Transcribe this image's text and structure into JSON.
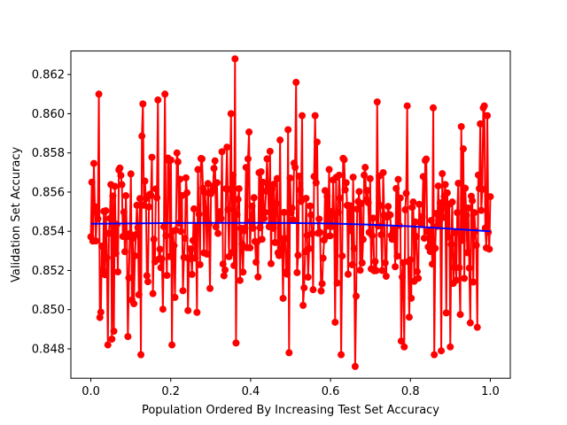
{
  "chart_data": {
    "type": "line",
    "title": "",
    "xlabel": "Population Ordered By Increasing Test Set Accuracy",
    "ylabel": "Validation Set Accuracy",
    "xlim": [
      -0.05,
      1.05
    ],
    "ylim": [
      0.8465,
      0.8632
    ],
    "grid": false,
    "legend": "none",
    "x_ticks": [
      0.0,
      0.2,
      0.4,
      0.6,
      0.8,
      1.0
    ],
    "x_tick_labels": [
      "0.0",
      "0.2",
      "0.4",
      "0.6",
      "0.8",
      "1.0"
    ],
    "y_ticks": [
      0.848,
      0.85,
      0.852,
      0.854,
      0.856,
      0.858,
      0.86,
      0.862
    ],
    "y_tick_labels": [
      "0.848",
      "0.850",
      "0.852",
      "0.854",
      "0.856",
      "0.858",
      "0.860",
      "0.862"
    ],
    "series": [
      {
        "role": "population",
        "color": "#ff0000",
        "marker": "circle",
        "x_range": [
          0.0,
          1.0
        ],
        "point_count": 400,
        "y_mean": 0.8544,
        "y_min": 0.8471,
        "y_max": 0.8628,
        "highlighted_points": [
          {
            "x": 0.36,
            "y": 0.8628
          },
          {
            "x": 0.513,
            "y": 0.8616
          },
          {
            "x": 0.021,
            "y": 0.861
          },
          {
            "x": 0.185,
            "y": 0.861
          },
          {
            "x": 0.168,
            "y": 0.8607
          },
          {
            "x": 0.716,
            "y": 0.8606
          },
          {
            "x": 0.13,
            "y": 0.8605
          },
          {
            "x": 0.985,
            "y": 0.8604
          },
          {
            "x": 0.793,
            "y": 0.8604
          },
          {
            "x": 0.858,
            "y": 0.8603
          },
          {
            "x": 0.35,
            "y": 0.86
          },
          {
            "x": 0.528,
            "y": 0.8599
          },
          {
            "x": 0.561,
            "y": 0.8599
          },
          {
            "x": 0.993,
            "y": 0.8599
          },
          {
            "x": 0.126,
            "y": 0.8477
          },
          {
            "x": 0.495,
            "y": 0.8478
          },
          {
            "x": 0.626,
            "y": 0.8477
          },
          {
            "x": 0.661,
            "y": 0.8471
          },
          {
            "x": 0.86,
            "y": 0.8477
          },
          {
            "x": 0.042,
            "y": 0.8482
          },
          {
            "x": 0.052,
            "y": 0.8485
          },
          {
            "x": 0.203,
            "y": 0.8482
          },
          {
            "x": 0.363,
            "y": 0.8483
          },
          {
            "x": 0.785,
            "y": 0.8481
          },
          {
            "x": 0.776,
            "y": 0.8484
          },
          {
            "x": 0.899,
            "y": 0.8481
          },
          {
            "x": 0.058,
            "y": 0.8489
          },
          {
            "x": 0.022,
            "y": 0.8496
          },
          {
            "x": 0.967,
            "y": 0.8491
          }
        ]
      },
      {
        "role": "trend",
        "color": "#0000ff",
        "marker": "none",
        "x": [
          0.0,
          0.1,
          0.2,
          0.3,
          0.4,
          0.5,
          0.6,
          0.7,
          0.8,
          0.9,
          1.0
        ],
        "values": [
          0.85438,
          0.8544,
          0.85442,
          0.85443,
          0.85443,
          0.85442,
          0.8544,
          0.85434,
          0.85425,
          0.85413,
          0.854
        ]
      }
    ]
  }
}
